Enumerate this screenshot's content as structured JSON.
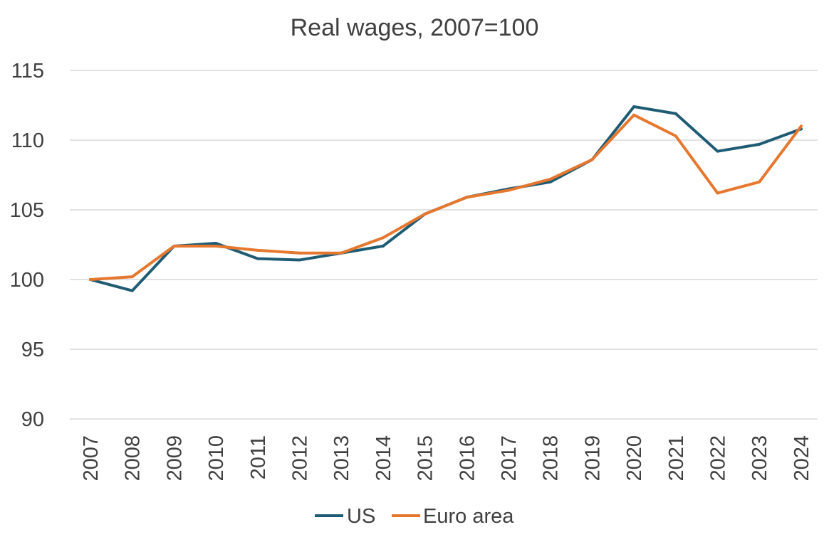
{
  "chart_data": {
    "type": "line",
    "title": "Real wages, 2007=100",
    "xlabel": "",
    "ylabel": "",
    "categories": [
      "2007",
      "2008",
      "2009",
      "2010",
      "2011",
      "2012",
      "2013",
      "2014",
      "2015",
      "2016",
      "2017",
      "2018",
      "2019",
      "2020",
      "2021",
      "2022",
      "2023",
      "2024"
    ],
    "ylim": [
      90,
      115
    ],
    "yticks": [
      90,
      95,
      100,
      105,
      110,
      115
    ],
    "grid": true,
    "legend_position": "bottom",
    "series": [
      {
        "name": "US",
        "color": "#1f5c74",
        "values": [
          100.0,
          99.2,
          102.4,
          102.6,
          101.5,
          101.4,
          101.9,
          102.4,
          104.7,
          105.9,
          106.5,
          107.0,
          108.6,
          112.4,
          111.9,
          109.2,
          109.7,
          110.8
        ]
      },
      {
        "name": "Euro area",
        "color": "#e6772e",
        "values": [
          100.0,
          100.2,
          102.4,
          102.4,
          102.1,
          101.9,
          101.9,
          103.0,
          104.7,
          105.9,
          106.4,
          107.2,
          108.6,
          111.8,
          110.3,
          106.2,
          107.0,
          111.0
        ]
      }
    ]
  }
}
